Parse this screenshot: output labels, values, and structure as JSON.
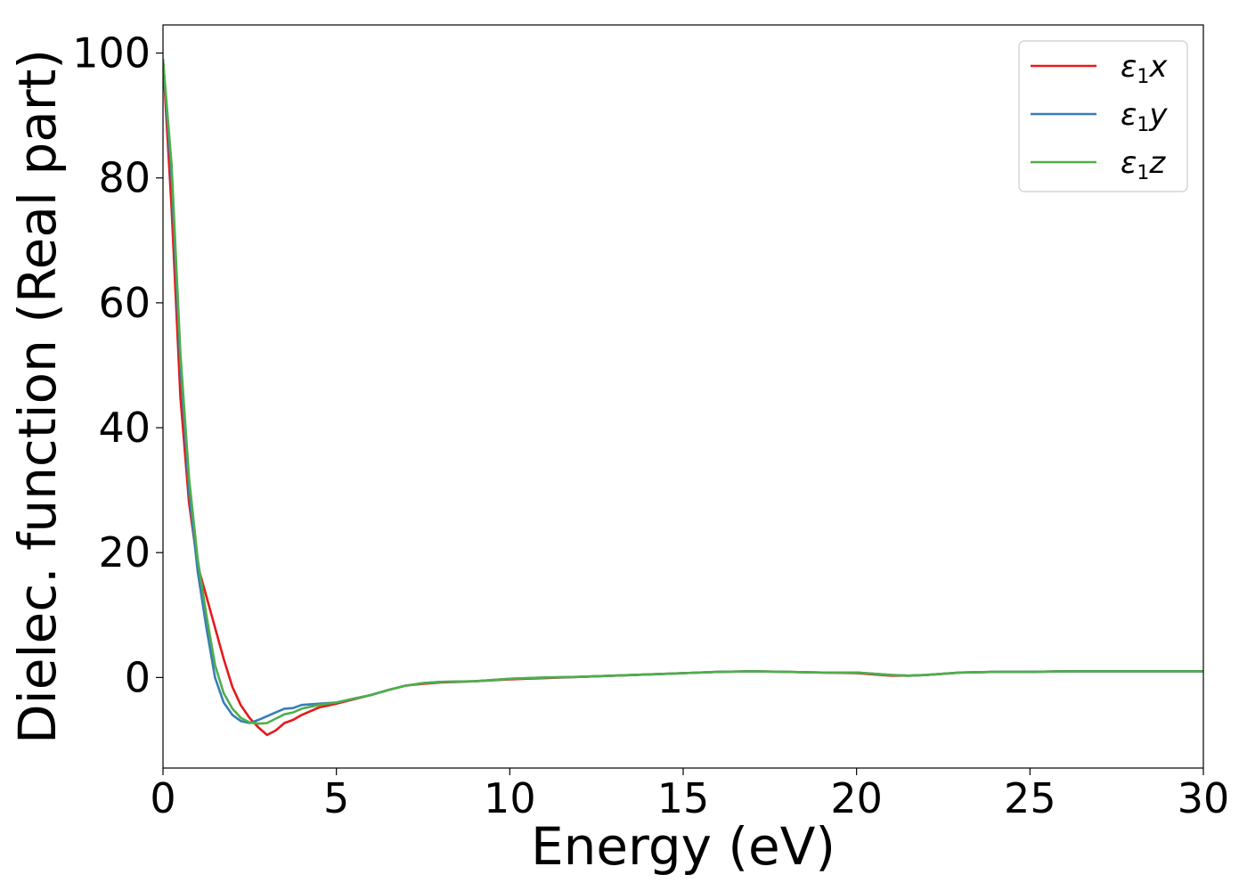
{
  "chart_data": {
    "type": "line",
    "title": "",
    "xlabel": "Energy (eV)",
    "ylabel": "Dielec. function (Real part)",
    "xlim": [
      0,
      30
    ],
    "ylim": [
      -14.5,
      104.5
    ],
    "xticks": [
      "0",
      "5",
      "10",
      "15",
      "20",
      "25",
      "30"
    ],
    "yticks": [
      "0",
      "20",
      "40",
      "60",
      "80",
      "100"
    ],
    "grid": false,
    "legend_position": "top-right",
    "series": [
      {
        "name": "ε1x",
        "legend_base": "ε",
        "legend_sub": "1",
        "legend_suffix": "x",
        "color": "#e41a1c",
        "x": [
          0,
          0.25,
          0.5,
          0.75,
          1.0,
          1.25,
          1.5,
          1.75,
          2.0,
          2.25,
          2.5,
          2.75,
          3.0,
          3.25,
          3.5,
          3.75,
          4.0,
          4.5,
          5.0,
          5.5,
          6.0,
          6.5,
          7.0,
          7.5,
          8.0,
          9.0,
          10.0,
          11.0,
          12.0,
          13.0,
          14.0,
          15.0,
          16.0,
          17.0,
          18.0,
          19.0,
          20.0,
          20.5,
          21.0,
          21.5,
          22.0,
          22.5,
          23.0,
          24.0,
          25.0,
          26.0,
          27.0,
          28.0,
          29.0,
          30.0
        ],
        "y": [
          99,
          75,
          45,
          28,
          18,
          13,
          8,
          3,
          -1.5,
          -4.5,
          -6.5,
          -8,
          -9.2,
          -8.5,
          -7.3,
          -6.8,
          -6,
          -4.8,
          -4.2,
          -3.5,
          -2.8,
          -2,
          -1.3,
          -1,
          -0.8,
          -0.6,
          -0.3,
          -0.1,
          0.1,
          0.3,
          0.5,
          0.7,
          0.9,
          1.0,
          0.9,
          0.8,
          0.7,
          0.5,
          0.3,
          0.3,
          0.4,
          0.6,
          0.8,
          0.9,
          0.9,
          1.0,
          1.0,
          1.0,
          1.0,
          1.0
        ]
      },
      {
        "name": "ε1y",
        "legend_base": "ε",
        "legend_sub": "1",
        "legend_suffix": "y",
        "color": "#377eb8",
        "x": [
          0,
          0.25,
          0.5,
          0.75,
          1.0,
          1.25,
          1.5,
          1.75,
          2.0,
          2.25,
          2.5,
          2.75,
          3.0,
          3.25,
          3.5,
          3.75,
          4.0,
          4.5,
          5.0,
          5.5,
          6.0,
          6.5,
          7.0,
          7.5,
          8.0,
          9.0,
          10.0,
          11.0,
          12.0,
          13.0,
          14.0,
          15.0,
          16.0,
          17.0,
          18.0,
          19.0,
          20.0,
          20.5,
          21.0,
          21.5,
          22.0,
          22.5,
          23.0,
          24.0,
          25.0,
          26.0,
          27.0,
          28.0,
          29.0,
          30.0
        ],
        "y": [
          99,
          80,
          50,
          30,
          17,
          8,
          0,
          -4,
          -6,
          -7,
          -7.3,
          -6.8,
          -6.2,
          -5.6,
          -5.0,
          -4.9,
          -4.4,
          -4.2,
          -4.0,
          -3.4,
          -2.8,
          -2,
          -1.3,
          -0.9,
          -0.7,
          -0.6,
          -0.2,
          0.0,
          0.1,
          0.3,
          0.5,
          0.7,
          0.9,
          1.0,
          0.9,
          0.8,
          0.8,
          0.6,
          0.4,
          0.3,
          0.4,
          0.6,
          0.8,
          0.9,
          0.9,
          1.0,
          1.0,
          1.0,
          1.0,
          1.0
        ]
      },
      {
        "name": "ε1z",
        "legend_base": "ε",
        "legend_sub": "1",
        "legend_suffix": "z",
        "color": "#4daf4a",
        "x": [
          0,
          0.25,
          0.5,
          0.75,
          1.0,
          1.25,
          1.5,
          1.75,
          2.0,
          2.25,
          2.5,
          2.75,
          3.0,
          3.25,
          3.5,
          3.75,
          4.0,
          4.5,
          5.0,
          5.5,
          6.0,
          6.5,
          7.0,
          7.5,
          8.0,
          9.0,
          10.0,
          11.0,
          12.0,
          13.0,
          14.0,
          15.0,
          16.0,
          17.0,
          18.0,
          19.0,
          20.0,
          20.5,
          21.0,
          21.5,
          22.0,
          22.5,
          23.0,
          24.0,
          25.0,
          26.0,
          27.0,
          28.0,
          29.0,
          30.0
        ],
        "y": [
          99,
          82,
          52,
          32,
          19,
          10,
          2,
          -2.5,
          -5,
          -6.5,
          -7.2,
          -7.4,
          -7.3,
          -6.6,
          -5.9,
          -5.6,
          -5.0,
          -4.4,
          -4.0,
          -3.4,
          -2.8,
          -2,
          -1.3,
          -0.9,
          -0.7,
          -0.6,
          -0.2,
          0.0,
          0.1,
          0.3,
          0.5,
          0.7,
          0.9,
          1.0,
          0.9,
          0.8,
          0.8,
          0.6,
          0.4,
          0.3,
          0.4,
          0.6,
          0.8,
          0.9,
          0.9,
          1.0,
          1.0,
          1.0,
          1.0,
          1.0
        ]
      }
    ]
  }
}
